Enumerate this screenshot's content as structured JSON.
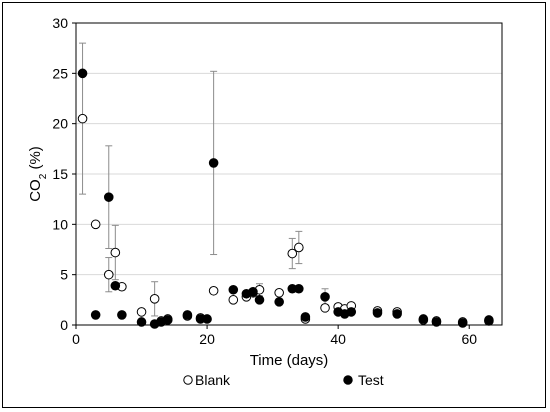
{
  "chart_data": {
    "type": "scatter",
    "xlabel": "Time (days)",
    "ylabel": {
      "main": "CO",
      "sub": "2",
      "suffix": " (%)"
    },
    "xlim": [
      0,
      65
    ],
    "ylim": [
      0,
      30
    ],
    "xticks": [
      0,
      20,
      40,
      60
    ],
    "yticks": [
      0,
      5,
      10,
      15,
      20,
      25,
      30
    ],
    "grid": "horizontal",
    "legend": "bottom",
    "series": [
      {
        "name": "Blank",
        "marker": "open-circle",
        "points": [
          {
            "x": 1,
            "y": 20.5,
            "err": 7.5
          },
          {
            "x": 3,
            "y": 10
          },
          {
            "x": 5,
            "y": 5,
            "err": 1.7
          },
          {
            "x": 6,
            "y": 7.2,
            "err": 2.7
          },
          {
            "x": 7,
            "y": 3.8
          },
          {
            "x": 10,
            "y": 1.3
          },
          {
            "x": 12,
            "y": 2.6,
            "err": 1.7
          },
          {
            "x": 13,
            "y": 0.4
          },
          {
            "x": 14,
            "y": 0.6
          },
          {
            "x": 17,
            "y": 0.9
          },
          {
            "x": 19,
            "y": 0.7
          },
          {
            "x": 21,
            "y": 3.4
          },
          {
            "x": 24,
            "y": 2.5
          },
          {
            "x": 26,
            "y": 2.8
          },
          {
            "x": 27,
            "y": 3.2
          },
          {
            "x": 28,
            "y": 3.5,
            "err": 0.6
          },
          {
            "x": 31,
            "y": 3.2
          },
          {
            "x": 33,
            "y": 7.1,
            "err": 1.5
          },
          {
            "x": 34,
            "y": 7.7,
            "err": 1.6
          },
          {
            "x": 35,
            "y": 0.6
          },
          {
            "x": 38,
            "y": 1.7
          },
          {
            "x": 40,
            "y": 1.8
          },
          {
            "x": 41,
            "y": 1.6
          },
          {
            "x": 42,
            "y": 1.9
          },
          {
            "x": 46,
            "y": 1.4
          },
          {
            "x": 49,
            "y": 1.3
          },
          {
            "x": 53,
            "y": 0.5
          },
          {
            "x": 55,
            "y": 0.4
          },
          {
            "x": 59,
            "y": 0.3
          },
          {
            "x": 63,
            "y": 0.4
          }
        ]
      },
      {
        "name": "Test",
        "marker": "filled-circle",
        "points": [
          {
            "x": 1,
            "y": 25
          },
          {
            "x": 3,
            "y": 1
          },
          {
            "x": 5,
            "y": 12.7,
            "err": 5.1
          },
          {
            "x": 6,
            "y": 3.9
          },
          {
            "x": 7,
            "y": 1
          },
          {
            "x": 10,
            "y": 0.3
          },
          {
            "x": 12,
            "y": 0.1
          },
          {
            "x": 13,
            "y": 0.3
          },
          {
            "x": 14,
            "y": 0.5
          },
          {
            "x": 17,
            "y": 1
          },
          {
            "x": 19,
            "y": 0.6
          },
          {
            "x": 20,
            "y": 0.6
          },
          {
            "x": 21,
            "y": 16.1,
            "err": 9.1
          },
          {
            "x": 24,
            "y": 3.5
          },
          {
            "x": 26,
            "y": 3.1
          },
          {
            "x": 27,
            "y": 3.3
          },
          {
            "x": 28,
            "y": 2.5
          },
          {
            "x": 31,
            "y": 2.3
          },
          {
            "x": 33,
            "y": 3.6
          },
          {
            "x": 34,
            "y": 3.6
          },
          {
            "x": 35,
            "y": 0.8
          },
          {
            "x": 38,
            "y": 2.8,
            "err": 0.8
          },
          {
            "x": 40,
            "y": 1.3
          },
          {
            "x": 41,
            "y": 1.1
          },
          {
            "x": 42,
            "y": 1.3
          },
          {
            "x": 46,
            "y": 1.2
          },
          {
            "x": 49,
            "y": 1.1
          },
          {
            "x": 53,
            "y": 0.6
          },
          {
            "x": 55,
            "y": 0.3
          },
          {
            "x": 59,
            "y": 0.2
          },
          {
            "x": 63,
            "y": 0.5
          }
        ]
      }
    ]
  }
}
